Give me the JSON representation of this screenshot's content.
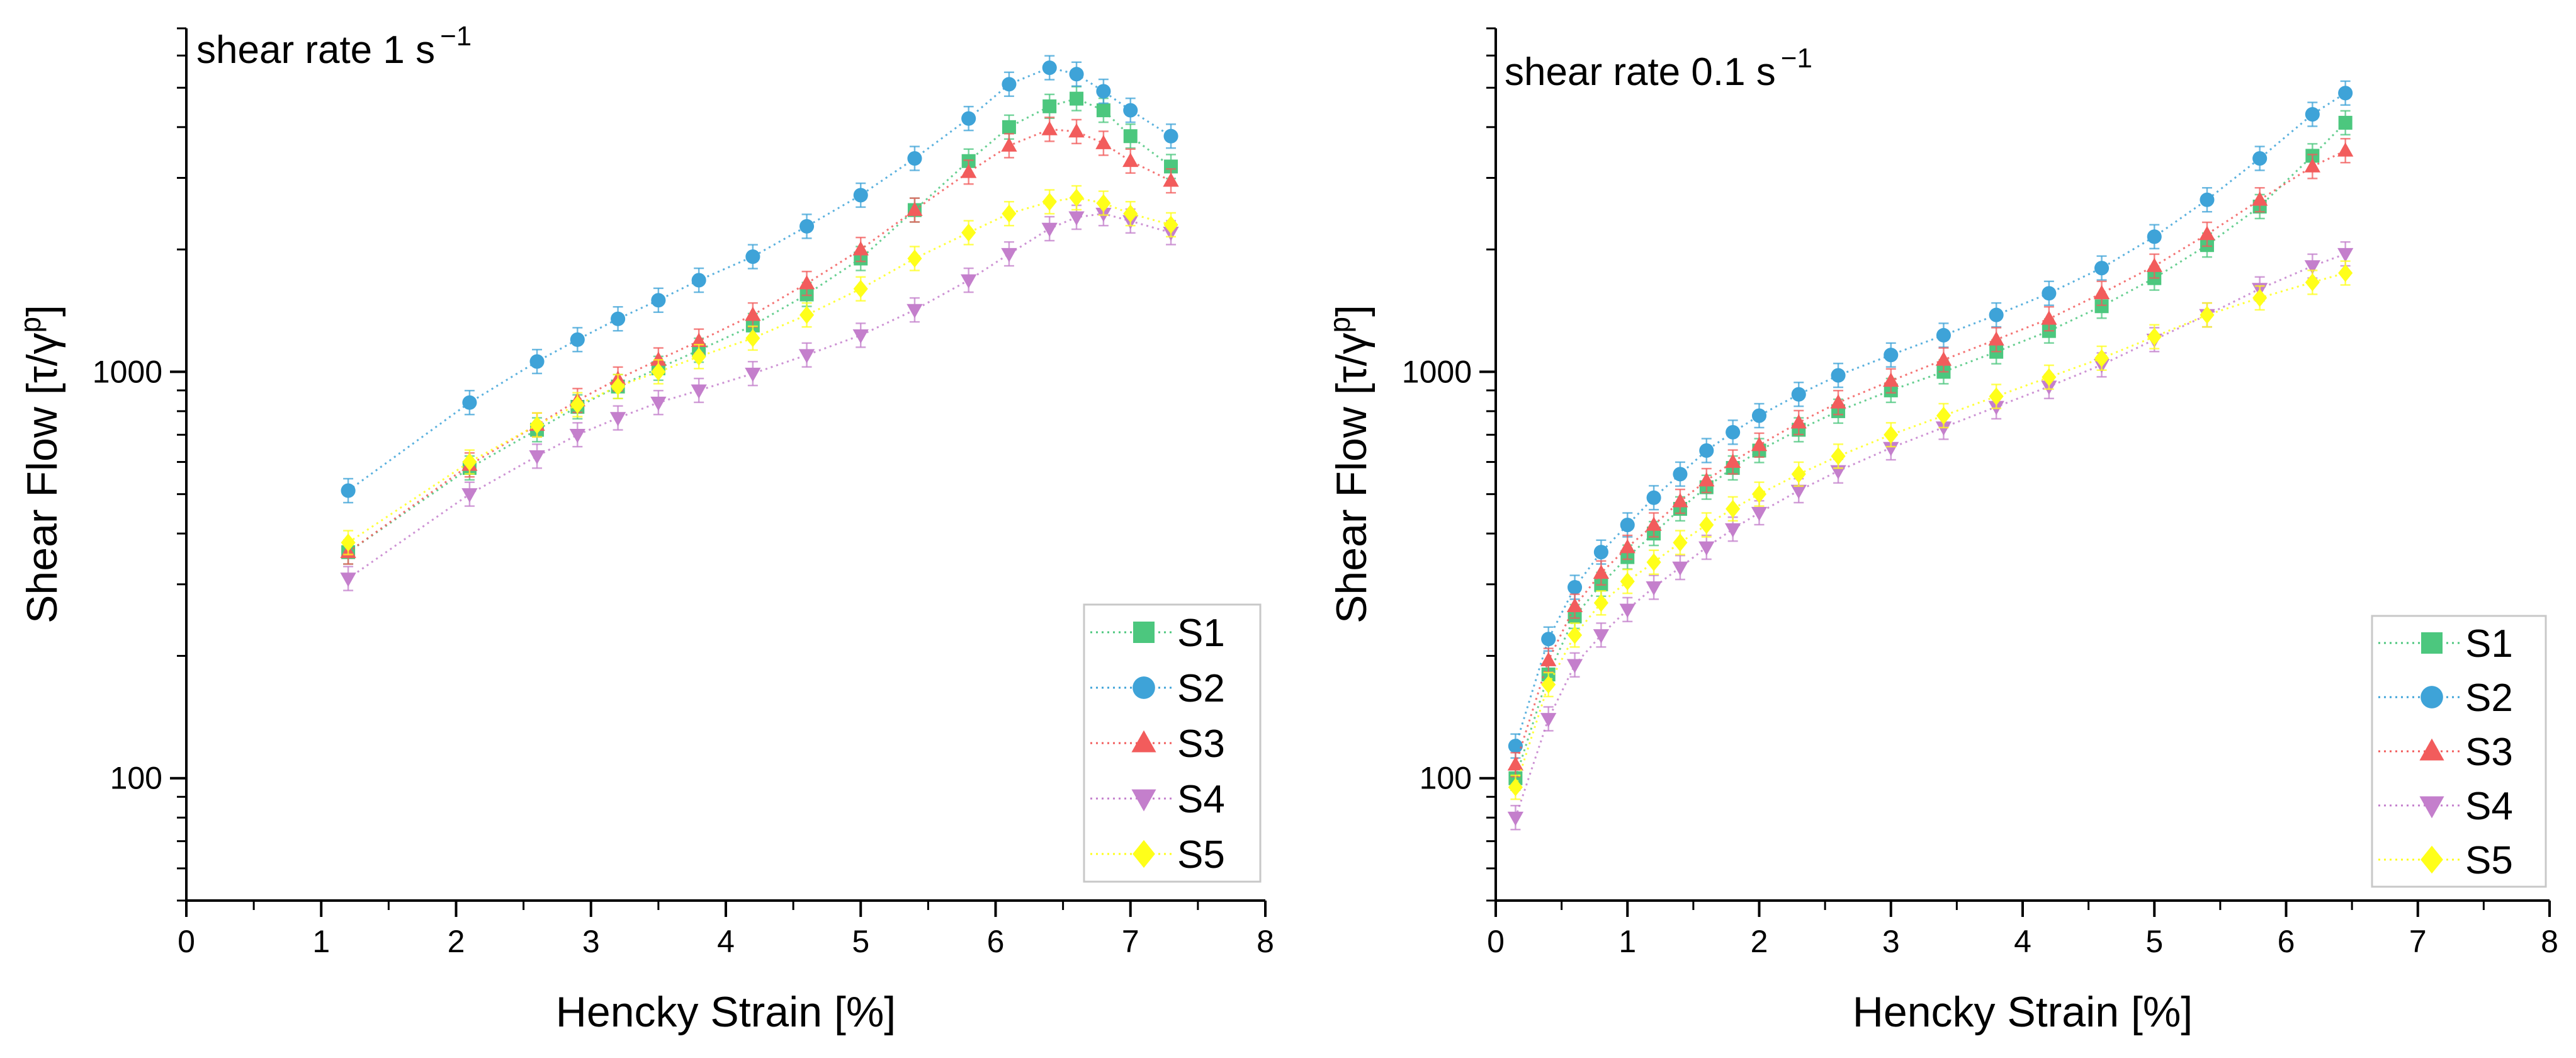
{
  "figure_title": "",
  "colors": {
    "S1": "#4cc77e",
    "S2": "#3ea3d8",
    "S3": "#f25c5c",
    "S4": "#c47fcc",
    "S5": "#ffff1a"
  },
  "markers": {
    "S1": "square",
    "S2": "circle",
    "S3": "triangle-up",
    "S4": "triangle-down",
    "S5": "diamond"
  },
  "chart_data": [
    {
      "type": "scatter",
      "title": "shear rate 1 s⁻¹",
      "title_main": "shear rate 1 s",
      "title_sup": "−1",
      "xlabel": "Hencky Strain [%]",
      "ylabel_main": "Shear Flow [τ/γ",
      "ylabel_sup": "p",
      "ylabel_end": "]",
      "xlim": [
        0,
        8
      ],
      "ylim": [
        50,
        7000
      ],
      "yscale": "log",
      "xticks": [
        "0",
        "1",
        "2",
        "3",
        "4",
        "5",
        "6",
        "7",
        "8"
      ],
      "yticks": [
        "100",
        "1000"
      ],
      "legend_position": "bottom-right",
      "series": [
        {
          "name": "S1",
          "x": [
            1.2,
            2.1,
            2.6,
            2.9,
            3.2,
            3.5,
            3.8,
            4.2,
            4.6,
            5.0,
            5.4,
            5.8,
            6.1,
            6.4,
            6.6,
            6.8,
            7.0,
            7.3
          ],
          "y": [
            360,
            580,
            720,
            820,
            920,
            1020,
            1130,
            1300,
            1550,
            1900,
            2500,
            3300,
            4000,
            4500,
            4700,
            4400,
            3800,
            3200
          ]
        },
        {
          "name": "S2",
          "x": [
            1.2,
            2.1,
            2.6,
            2.9,
            3.2,
            3.5,
            3.8,
            4.2,
            4.6,
            5.0,
            5.4,
            5.8,
            6.1,
            6.4,
            6.6,
            6.8,
            7.0,
            7.3
          ],
          "y": [
            510,
            840,
            1060,
            1200,
            1350,
            1500,
            1680,
            1920,
            2280,
            2720,
            3350,
            4200,
            5100,
            5600,
            5400,
            4900,
            4400,
            3800
          ]
        },
        {
          "name": "S3",
          "x": [
            1.2,
            2.1,
            2.6,
            2.9,
            3.2,
            3.5,
            3.8,
            4.2,
            4.6,
            5.0,
            5.4,
            5.8,
            6.1,
            6.4,
            6.6,
            6.8,
            7.0,
            7.3
          ],
          "y": [
            360,
            590,
            740,
            850,
            960,
            1070,
            1190,
            1380,
            1650,
            2000,
            2500,
            3100,
            3600,
            3950,
            3900,
            3650,
            3300,
            2950
          ]
        },
        {
          "name": "S4",
          "x": [
            1.2,
            2.1,
            2.6,
            2.9,
            3.2,
            3.5,
            3.8,
            4.2,
            4.6,
            5.0,
            5.4,
            5.8,
            6.1,
            6.4,
            6.6,
            6.8,
            7.0,
            7.3
          ],
          "y": [
            310,
            500,
            620,
            700,
            770,
            840,
            900,
            990,
            1100,
            1230,
            1420,
            1680,
            1950,
            2250,
            2400,
            2450,
            2350,
            2200
          ]
        },
        {
          "name": "S5",
          "x": [
            1.2,
            2.1,
            2.6,
            2.9,
            3.2,
            3.5,
            3.8,
            4.2,
            4.6,
            5.0,
            5.4,
            5.8,
            6.1,
            6.4,
            6.6,
            6.8,
            7.0,
            7.3
          ],
          "y": [
            380,
            600,
            740,
            830,
            920,
            1000,
            1090,
            1210,
            1380,
            1600,
            1900,
            2200,
            2450,
            2620,
            2680,
            2600,
            2450,
            2300
          ]
        }
      ]
    },
    {
      "type": "scatter",
      "title": "shear rate 0.1 s⁻¹",
      "title_main": "shear rate 0.1 s",
      "title_sup": "−1",
      "xlabel": "Hencky Strain [%]",
      "ylabel_main": "Shear Flow [τ/γ",
      "ylabel_sup": "p",
      "ylabel_end": "]",
      "xlim": [
        0,
        8
      ],
      "ylim": [
        50,
        7000
      ],
      "yscale": "log",
      "xticks": [
        "0",
        "1",
        "2",
        "3",
        "4",
        "5",
        "6",
        "7",
        "8"
      ],
      "yticks": [
        "100",
        "1000"
      ],
      "legend_position": "bottom-right",
      "series": [
        {
          "name": "S1",
          "x": [
            0.15,
            0.4,
            0.6,
            0.8,
            1.0,
            1.2,
            1.4,
            1.6,
            1.8,
            2.0,
            2.3,
            2.6,
            3.0,
            3.4,
            3.8,
            4.2,
            4.6,
            5.0,
            5.4,
            5.8,
            6.2,
            6.45
          ],
          "y": [
            100,
            180,
            250,
            300,
            350,
            400,
            460,
            520,
            580,
            640,
            720,
            800,
            900,
            1000,
            1120,
            1260,
            1450,
            1700,
            2050,
            2550,
            3400,
            4100
          ]
        },
        {
          "name": "S2",
          "x": [
            0.15,
            0.4,
            0.6,
            0.8,
            1.0,
            1.2,
            1.4,
            1.6,
            1.8,
            2.0,
            2.3,
            2.6,
            3.0,
            3.4,
            3.8,
            4.2,
            4.6,
            5.0,
            5.4,
            5.8,
            6.2,
            6.45
          ],
          "y": [
            120,
            220,
            295,
            360,
            420,
            490,
            560,
            640,
            710,
            780,
            880,
            980,
            1100,
            1230,
            1380,
            1560,
            1800,
            2150,
            2650,
            3350,
            4300,
            4850
          ]
        },
        {
          "name": "S3",
          "x": [
            0.15,
            0.4,
            0.6,
            0.8,
            1.0,
            1.2,
            1.4,
            1.6,
            1.8,
            2.0,
            2.3,
            2.6,
            3.0,
            3.4,
            3.8,
            4.2,
            4.6,
            5.0,
            5.4,
            5.8,
            6.2,
            6.45
          ],
          "y": [
            108,
            195,
            265,
            320,
            370,
            420,
            480,
            540,
            600,
            660,
            750,
            840,
            950,
            1070,
            1200,
            1350,
            1560,
            1820,
            2180,
            2650,
            3200,
            3500
          ]
        },
        {
          "name": "S4",
          "x": [
            0.15,
            0.4,
            0.6,
            0.8,
            1.0,
            1.2,
            1.4,
            1.6,
            1.8,
            2.0,
            2.3,
            2.6,
            3.0,
            3.4,
            3.8,
            4.2,
            4.6,
            5.0,
            5.4,
            5.8,
            6.2,
            6.45
          ],
          "y": [
            80,
            140,
            190,
            225,
            260,
            295,
            330,
            370,
            410,
            450,
            510,
            570,
            650,
            730,
            820,
            920,
            1040,
            1200,
            1380,
            1600,
            1820,
            1950
          ]
        },
        {
          "name": "S5",
          "x": [
            0.15,
            0.4,
            0.6,
            0.8,
            1.0,
            1.2,
            1.4,
            1.6,
            1.8,
            2.0,
            2.3,
            2.6,
            3.0,
            3.4,
            3.8,
            4.2,
            4.6,
            5.0,
            5.4,
            5.8,
            6.2,
            6.45
          ],
          "y": [
            95,
            170,
            225,
            270,
            305,
            340,
            380,
            420,
            460,
            500,
            560,
            620,
            700,
            780,
            870,
            970,
            1080,
            1220,
            1380,
            1520,
            1660,
            1750
          ]
        }
      ]
    }
  ]
}
